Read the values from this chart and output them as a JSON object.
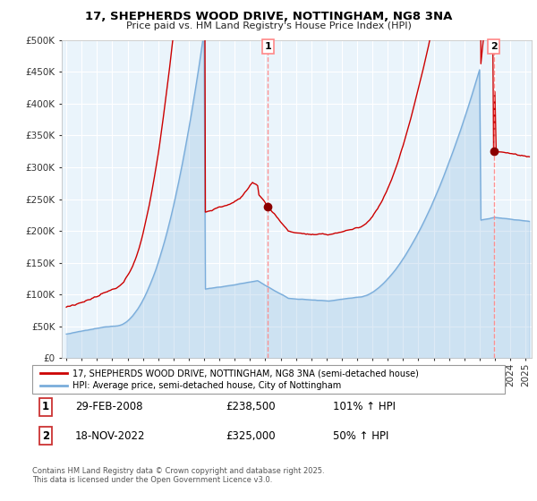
{
  "title": "17, SHEPHERDS WOOD DRIVE, NOTTINGHAM, NG8 3NA",
  "subtitle": "Price paid vs. HM Land Registry's House Price Index (HPI)",
  "legend_line1": "17, SHEPHERDS WOOD DRIVE, NOTTINGHAM, NG8 3NA (semi-detached house)",
  "legend_line2": "HPI: Average price, semi-detached house, City of Nottingham",
  "annotation1_label": "1",
  "annotation1_date": "29-FEB-2008",
  "annotation1_price": "£238,500",
  "annotation1_hpi": "101% ↑ HPI",
  "annotation2_label": "2",
  "annotation2_date": "18-NOV-2022",
  "annotation2_price": "£325,000",
  "annotation2_hpi": "50% ↑ HPI",
  "footer": "Contains HM Land Registry data © Crown copyright and database right 2025.\nThis data is licensed under the Open Government Licence v3.0.",
  "property_color": "#cc0000",
  "hpi_color": "#7aaddb",
  "hpi_fill_color": "#ddeeff",
  "vline_color": "#ff8888",
  "ylim": [
    0,
    500000
  ],
  "yticks": [
    0,
    50000,
    100000,
    150000,
    200000,
    250000,
    300000,
    350000,
    400000,
    450000,
    500000
  ],
  "sale1_year": 2008.15,
  "sale1_price": 238500,
  "sale2_year": 2022.88,
  "sale2_price": 325000,
  "background_color": "#ffffff",
  "plot_bg_color": "#eaf4fb",
  "grid_color": "#ffffff"
}
